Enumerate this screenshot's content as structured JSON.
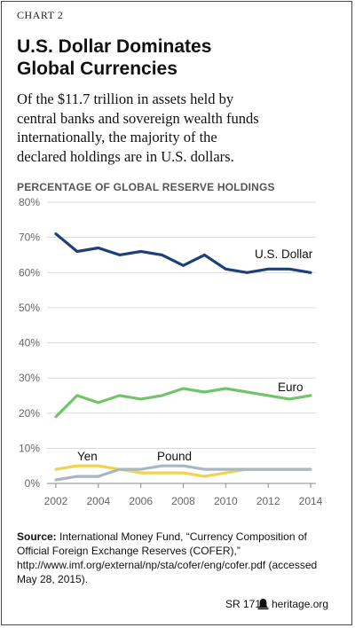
{
  "header": {
    "chart_label": "CHART 2",
    "title_lines": [
      "U.S. Dollar Dominates",
      "Global Currencies"
    ],
    "subtitle_lines": [
      "Of the $11.7 trillion in assets held by",
      "central banks and sovereign wealth funds",
      "internationally, the majority of the",
      "declared holdings are in U.S. dollars."
    ],
    "axis_title": "PERCENTAGE OF GLOBAL RESERVE HOLDINGS"
  },
  "chart_data": {
    "type": "line",
    "x": [
      2002,
      2003,
      2004,
      2005,
      2006,
      2007,
      2008,
      2009,
      2010,
      2011,
      2012,
      2013,
      2014
    ],
    "x_tick_labels": [
      "2002",
      "2004",
      "2006",
      "2008",
      "2010",
      "2012",
      "2014"
    ],
    "y_tick_labels": [
      "0%",
      "10%",
      "20%",
      "30%",
      "40%",
      "50%",
      "60%",
      "70%",
      "80%"
    ],
    "ylim": [
      0,
      80
    ],
    "xlim": [
      2002,
      2014
    ],
    "grid": true,
    "series": [
      {
        "name": "U.S. Dollar",
        "color": "#1f3f7a",
        "values": [
          71,
          66,
          67,
          65,
          66,
          65,
          62,
          65,
          61,
          60,
          61,
          61,
          60
        ]
      },
      {
        "name": "Euro",
        "color": "#72c46b",
        "values": [
          19,
          25,
          23,
          25,
          24,
          25,
          27,
          26,
          27,
          26,
          25,
          24,
          25
        ]
      },
      {
        "name": "Yen",
        "color": "#f2d24e",
        "values": [
          4,
          5,
          5,
          4,
          3,
          3,
          3,
          2,
          3,
          4,
          4,
          4,
          4
        ]
      },
      {
        "name": "Pound",
        "color": "#a8b8c2",
        "values": [
          1,
          2,
          2,
          4,
          4,
          5,
          5,
          4,
          4,
          4,
          4,
          4,
          4
        ]
      }
    ]
  },
  "source": {
    "lead": "Source:",
    "text": "International Money Fund, “Currency Composition of Official Foreign Exchange Reserves (COFER),” http://www.imf.org/external/np/sta/cofer/eng/cofer.pdf (accessed May 28, 2015)."
  },
  "footer": {
    "report_id": "SR 171",
    "site": "heritage.org",
    "logo_icon": "bell-icon"
  }
}
